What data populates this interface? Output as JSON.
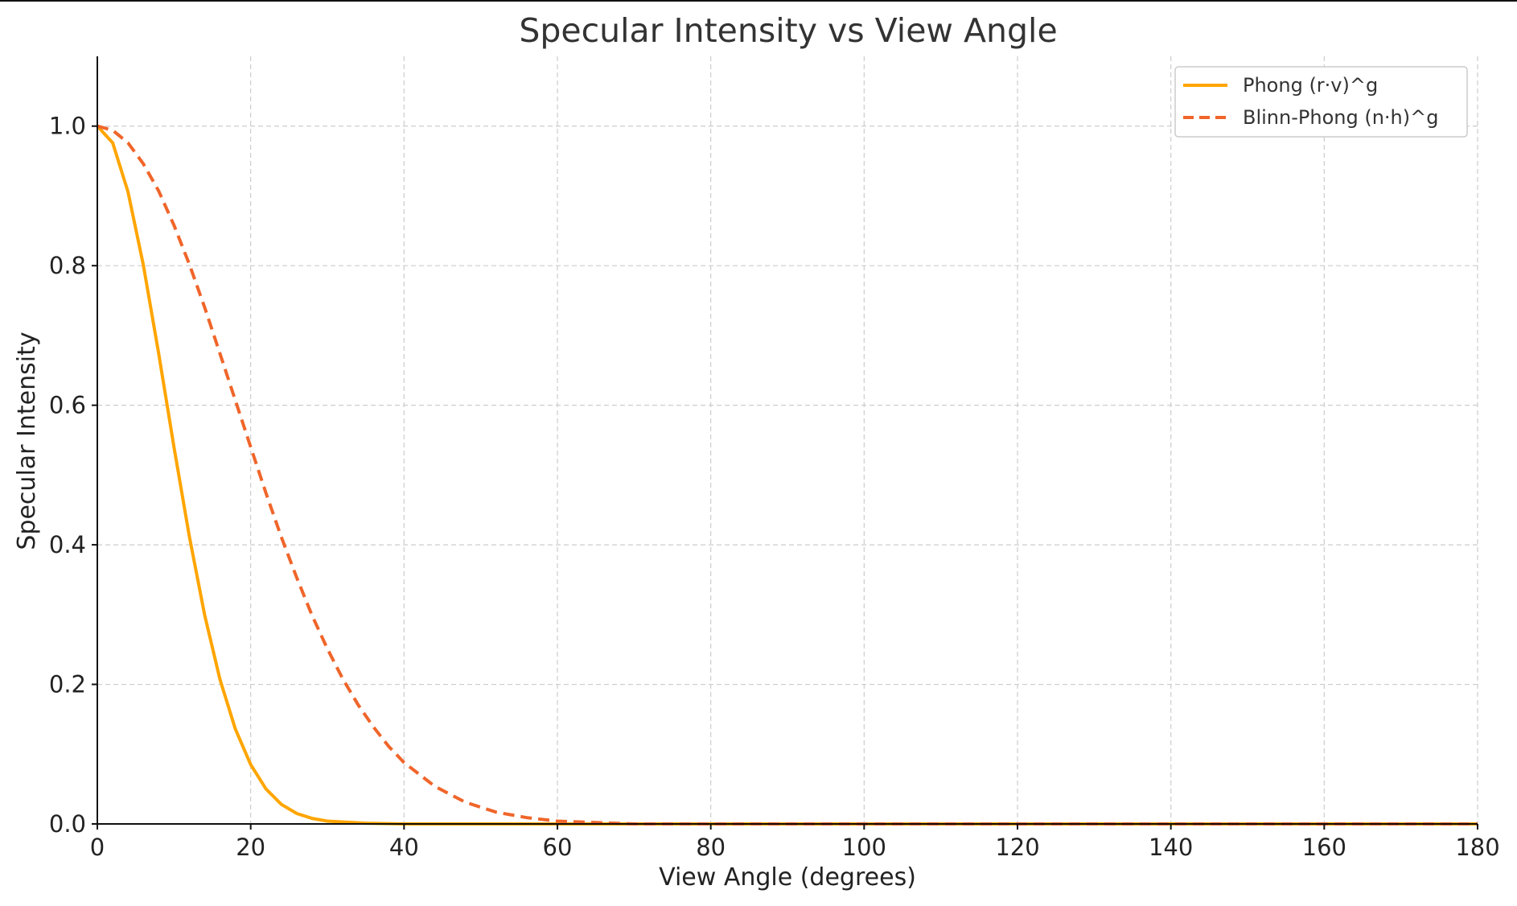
{
  "chart_data": {
    "type": "line",
    "title": "Specular Intensity vs View Angle",
    "xlabel": "View Angle (degrees)",
    "ylabel": "Specular Intensity",
    "xlim": [
      0,
      180
    ],
    "ylim": [
      0,
      1.1
    ],
    "xticks": [
      0,
      20,
      40,
      60,
      80,
      100,
      120,
      140,
      160,
      180
    ],
    "xtick_labels": [
      "0",
      "20",
      "40",
      "60",
      "80",
      "100",
      "120",
      "140",
      "160",
      "180"
    ],
    "yticks": [
      0.0,
      0.2,
      0.4,
      0.6,
      0.8,
      1.0
    ],
    "ytick_labels": [
      "0.0",
      "0.2",
      "0.4",
      "0.6",
      "0.8",
      "1.0"
    ],
    "grid": true,
    "legend_position": "top-right",
    "series": [
      {
        "name": "Phong (r·v)^g",
        "color": "#FFA500",
        "style": "solid",
        "x": [
          0,
          2,
          4,
          6,
          8,
          10,
          12,
          14,
          16,
          18,
          20,
          22,
          24,
          26,
          28,
          30,
          35,
          40,
          50,
          60,
          80,
          100,
          120,
          140,
          160,
          180
        ],
        "y": [
          1.0,
          0.976,
          0.906,
          0.801,
          0.674,
          0.54,
          0.412,
          0.299,
          0.207,
          0.136,
          0.085,
          0.05,
          0.028,
          0.015,
          0.008,
          0.004,
          0.001,
          0.0,
          0.0,
          0.0,
          0.0,
          0.0,
          0.0,
          0.0,
          0.0,
          0.0
        ]
      },
      {
        "name": "Blinn-Phong (n·h)^g",
        "color": "#F0652A",
        "style": "dashed",
        "x": [
          0,
          2,
          4,
          6,
          8,
          10,
          12,
          14,
          16,
          18,
          20,
          22,
          24,
          26,
          28,
          30,
          32,
          34,
          36,
          38,
          40,
          44,
          48,
          52,
          56,
          60,
          65,
          70,
          80,
          100,
          120,
          140,
          160,
          180
        ],
        "y": [
          1.0,
          0.994,
          0.976,
          0.946,
          0.907,
          0.858,
          0.802,
          0.74,
          0.674,
          0.607,
          0.54,
          0.474,
          0.411,
          0.353,
          0.299,
          0.251,
          0.208,
          0.171,
          0.139,
          0.111,
          0.088,
          0.054,
          0.031,
          0.017,
          0.009,
          0.004,
          0.002,
          0.0,
          0.0,
          0.0,
          0.0,
          0.0,
          0.0,
          0.0
        ]
      }
    ]
  }
}
